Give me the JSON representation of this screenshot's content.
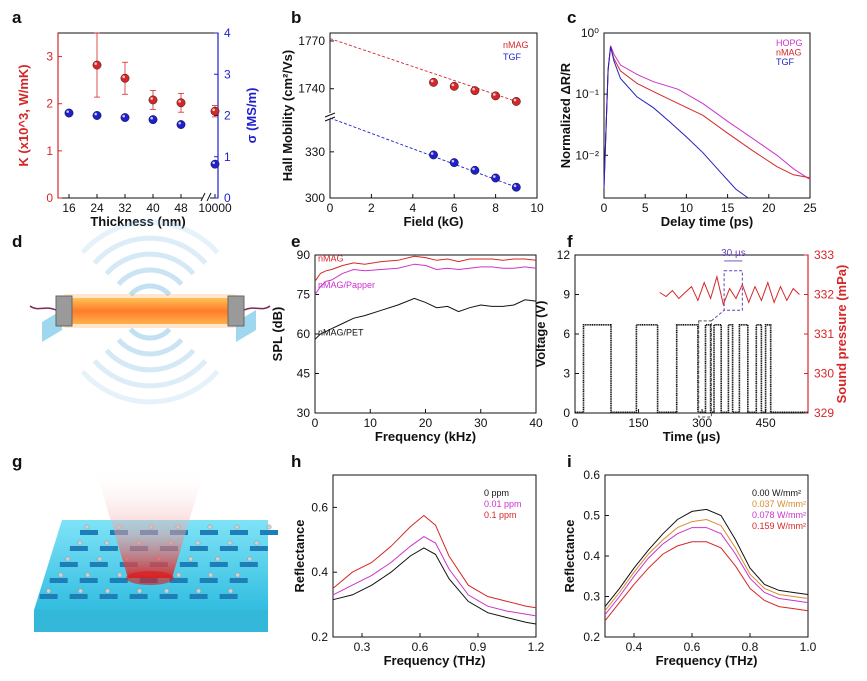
{
  "figure": {
    "panel_letters": [
      "a",
      "b",
      "c",
      "d",
      "e",
      "f",
      "g",
      "h",
      "i"
    ]
  },
  "chart_data": [
    {
      "id": "a",
      "type": "scatter",
      "xlabel": "Thickness (nm)",
      "ylabel_left": "K (x10^3, W/mK)",
      "ylabel_right": "σ (MS/m)",
      "categories": [
        "16",
        "24",
        "32",
        "40",
        "48",
        "10000"
      ],
      "ylim_left": [
        0,
        3.5
      ],
      "yticks_left": [
        "0",
        "1",
        "2",
        "3"
      ],
      "ylim_right": [
        0,
        4
      ],
      "yticks_right": [
        "0",
        "1",
        "2",
        "3",
        "4"
      ],
      "axis_break": true,
      "series": [
        {
          "axis": "left",
          "color": "#d62728",
          "values": [
            null,
            2.82,
            2.54,
            2.08,
            2.02,
            1.84
          ],
          "errors": [
            null,
            0.68,
            0.34,
            0.2,
            0.2,
            0.12
          ]
        },
        {
          "axis": "right",
          "color": "#1f1fcf",
          "values": [
            2.06,
            2.0,
            1.95,
            1.9,
            1.78,
            0.82
          ]
        }
      ]
    },
    {
      "id": "b",
      "type": "scatter",
      "xlabel": "Field (kG)",
      "ylabel": "Hall Mobility (cm²/Vs)",
      "xlim": [
        0,
        10
      ],
      "xticks": [
        "0",
        "2",
        "4",
        "6",
        "8",
        "10"
      ],
      "yticks": [
        "300",
        "330",
        "1740",
        "1770"
      ],
      "axis_break": true,
      "series": [
        {
          "name": "nMAG",
          "color": "#d62728",
          "x": [
            5,
            6,
            7,
            8,
            9
          ],
          "y": [
            1744,
            1741.5,
            1738.8,
            1735.5,
            1732
          ],
          "fit": [
            [
              0,
              1771.5
            ],
            [
              9,
              1732
            ]
          ]
        },
        {
          "name": "TGF",
          "color": "#1f1fcf",
          "x": [
            5,
            6,
            7,
            8,
            9
          ],
          "y": [
            328,
            323,
            318,
            313,
            307
          ],
          "fit": [
            [
              0,
              352
            ],
            [
              9,
              307
            ]
          ]
        }
      ]
    },
    {
      "id": "c",
      "type": "line",
      "xlabel": "Delay time (ps)",
      "ylabel": "Normalized ΔR/R",
      "yscale": "log",
      "xlim": [
        0,
        25
      ],
      "xticks": [
        "0",
        "5",
        "10",
        "15",
        "20",
        "25"
      ],
      "ylim": [
        0.002,
        1
      ],
      "yticks": [
        "10⁻²",
        "10⁻¹",
        "10⁰"
      ],
      "series": [
        {
          "name": "HOPG",
          "color": "#cc33cc",
          "x": [
            0,
            0.5,
            0.8,
            1.2,
            2,
            4,
            6,
            9,
            12,
            15,
            18,
            21,
            23,
            25
          ],
          "y": [
            0.003,
            0.25,
            0.62,
            0.45,
            0.3,
            0.21,
            0.16,
            0.12,
            0.07,
            0.036,
            0.019,
            0.01,
            0.006,
            0.004
          ]
        },
        {
          "name": "nMAG",
          "color": "#d62728",
          "x": [
            0,
            0.5,
            0.8,
            1.2,
            2,
            4,
            6,
            9,
            12,
            15,
            18,
            21,
            23,
            25
          ],
          "y": [
            0.003,
            0.25,
            0.6,
            0.38,
            0.24,
            0.15,
            0.11,
            0.07,
            0.045,
            0.023,
            0.012,
            0.0065,
            0.0048,
            0.0043
          ]
        },
        {
          "name": "TGF",
          "color": "#2222bb",
          "x": [
            0,
            0.5,
            0.8,
            1.2,
            2,
            4,
            6,
            8,
            10,
            12,
            14,
            16,
            17.5
          ],
          "y": [
            0.003,
            0.25,
            0.6,
            0.35,
            0.18,
            0.09,
            0.06,
            0.035,
            0.02,
            0.011,
            0.0055,
            0.0028,
            0.002
          ]
        }
      ]
    },
    {
      "id": "e",
      "type": "line",
      "xlabel": "Frequency (kHz)",
      "ylabel": "SPL (dB)",
      "xlim": [
        0,
        40
      ],
      "xticks": [
        "0",
        "10",
        "20",
        "30",
        "40"
      ],
      "ylim": [
        30,
        90
      ],
      "yticks": [
        "30",
        "45",
        "60",
        "75",
        "90"
      ],
      "series": [
        {
          "name": "nMAG",
          "color": "#d62728",
          "x": [
            0,
            1,
            2,
            3,
            5,
            7,
            9,
            12,
            15,
            18,
            20,
            22,
            24,
            26,
            28,
            30,
            32,
            34,
            36,
            38,
            40
          ],
          "y": [
            80,
            83,
            84,
            84.5,
            86,
            87,
            86.5,
            87.5,
            88,
            89.5,
            89,
            88,
            88.5,
            87.5,
            88.5,
            88.5,
            88.5,
            88,
            88.5,
            88.5,
            88
          ]
        },
        {
          "name": "nMAG/Papper",
          "color": "#cc33cc",
          "x": [
            0,
            1,
            2,
            3,
            5,
            7,
            9,
            12,
            15,
            18,
            20,
            22,
            24,
            26,
            28,
            30,
            32,
            34,
            36,
            38,
            40
          ],
          "y": [
            75,
            78,
            80,
            80.5,
            83,
            84.5,
            84,
            84.5,
            85,
            86.5,
            86,
            84.5,
            85,
            84.5,
            85,
            85.5,
            85.5,
            85,
            85,
            85.5,
            85
          ]
        },
        {
          "name": "nMAG/PET",
          "color": "#111111",
          "x": [
            0,
            1,
            2,
            3,
            5,
            7,
            9,
            12,
            15,
            18,
            20,
            22,
            24,
            26,
            28,
            30,
            32,
            34,
            36,
            38,
            40
          ],
          "y": [
            58,
            60,
            61,
            62,
            64,
            66,
            67,
            69,
            71,
            73.5,
            72,
            70,
            70.5,
            68.5,
            70,
            71,
            70.5,
            70.5,
            71,
            73,
            72.5
          ]
        }
      ]
    },
    {
      "id": "f",
      "type": "line",
      "xlabel": "Time (μs)",
      "ylabel_left": "Voltage (V)",
      "ylabel_right": "Sound pressure (mPa)",
      "xlim": [
        0,
        550
      ],
      "xticks": [
        "0",
        "150",
        "300",
        "450"
      ],
      "ylim_left": [
        0,
        12
      ],
      "yticks_left": [
        "0",
        "3",
        "6",
        "9",
        "12"
      ],
      "ylim_right": [
        329,
        333
      ],
      "yticks_right": [
        "329",
        "330",
        "331",
        "332",
        "333"
      ],
      "annotation": "30 μs",
      "pulses": {
        "color": "#111111",
        "high": 6.7,
        "low": 0.05,
        "intervals": [
          [
            20,
            85
          ],
          [
            145,
            195
          ],
          [
            240,
            290
          ],
          [
            308,
            320
          ],
          [
            328,
            345
          ],
          [
            362,
            372
          ],
          [
            388,
            408
          ],
          [
            428,
            440
          ],
          [
            450,
            462
          ]
        ]
      },
      "series": [
        {
          "name": "Sound pressure",
          "axis": "right",
          "color": "#d62728",
          "x": [
            200,
            215,
            230,
            245,
            260,
            275,
            290,
            305,
            320,
            335,
            350,
            365,
            380,
            395,
            410,
            425,
            440,
            455,
            470,
            485,
            500,
            515,
            530
          ],
          "y": [
            332.05,
            331.95,
            332.1,
            331.9,
            332.05,
            332.2,
            331.85,
            332.3,
            331.9,
            332.45,
            331.75,
            332.15,
            331.9,
            332.25,
            331.8,
            332.2,
            331.85,
            332.3,
            331.8,
            332.2,
            331.85,
            332.15,
            332.0
          ]
        }
      ]
    },
    {
      "id": "h",
      "type": "line",
      "xlabel": "Frequency (THz)",
      "ylabel": "Reflectance",
      "xlim": [
        0.15,
        1.2
      ],
      "xticks": [
        "0.3",
        "0.6",
        "0.9",
        "1.2"
      ],
      "ylim": [
        0.2,
        0.7
      ],
      "yticks": [
        "0.2",
        "0.4",
        "0.6"
      ],
      "series": [
        {
          "name": "0 ppm",
          "color": "#111111",
          "x": [
            0.15,
            0.25,
            0.35,
            0.45,
            0.55,
            0.62,
            0.68,
            0.75,
            0.85,
            0.95,
            1.05,
            1.15,
            1.2
          ],
          "y": [
            0.315,
            0.33,
            0.36,
            0.4,
            0.45,
            0.475,
            0.455,
            0.38,
            0.31,
            0.275,
            0.26,
            0.245,
            0.24
          ]
        },
        {
          "name": "0.01 ppm",
          "color": "#cc33cc",
          "x": [
            0.15,
            0.25,
            0.35,
            0.45,
            0.55,
            0.62,
            0.68,
            0.75,
            0.85,
            0.95,
            1.05,
            1.15,
            1.2
          ],
          "y": [
            0.33,
            0.36,
            0.39,
            0.43,
            0.48,
            0.51,
            0.49,
            0.41,
            0.33,
            0.295,
            0.28,
            0.27,
            0.265
          ]
        },
        {
          "name": "0.1 ppm",
          "color": "#d62728",
          "x": [
            0.15,
            0.25,
            0.35,
            0.45,
            0.55,
            0.62,
            0.68,
            0.75,
            0.85,
            0.95,
            1.05,
            1.15,
            1.2
          ],
          "y": [
            0.35,
            0.4,
            0.43,
            0.48,
            0.54,
            0.575,
            0.545,
            0.45,
            0.36,
            0.325,
            0.31,
            0.295,
            0.29
          ]
        }
      ]
    },
    {
      "id": "i",
      "type": "line",
      "xlabel": "Frequency (THz)",
      "ylabel": "Reflectance",
      "xlim": [
        0.3,
        1.0
      ],
      "xticks": [
        "0.4",
        "0.6",
        "0.8",
        "1.0"
      ],
      "ylim": [
        0.2,
        0.6
      ],
      "yticks": [
        "0.2",
        "0.3",
        "0.4",
        "0.5",
        "0.6"
      ],
      "series": [
        {
          "name": "0.00 W/mm²",
          "color": "#111111",
          "x": [
            0.3,
            0.35,
            0.4,
            0.45,
            0.5,
            0.55,
            0.6,
            0.65,
            0.7,
            0.75,
            0.8,
            0.85,
            0.9,
            0.95,
            1.0
          ],
          "y": [
            0.275,
            0.32,
            0.37,
            0.415,
            0.455,
            0.49,
            0.51,
            0.515,
            0.5,
            0.44,
            0.37,
            0.33,
            0.315,
            0.31,
            0.305
          ]
        },
        {
          "name": "0.037 W/mm²",
          "color": "#d98c2a",
          "x": [
            0.3,
            0.35,
            0.4,
            0.45,
            0.5,
            0.55,
            0.6,
            0.65,
            0.7,
            0.75,
            0.8,
            0.85,
            0.9,
            0.95,
            1.0
          ],
          "y": [
            0.265,
            0.31,
            0.36,
            0.405,
            0.44,
            0.47,
            0.485,
            0.49,
            0.475,
            0.42,
            0.355,
            0.32,
            0.305,
            0.3,
            0.295
          ]
        },
        {
          "name": "0.078 W/mm²",
          "color": "#cc33cc",
          "x": [
            0.3,
            0.35,
            0.4,
            0.45,
            0.5,
            0.55,
            0.6,
            0.65,
            0.7,
            0.75,
            0.8,
            0.85,
            0.9,
            0.95,
            1.0
          ],
          "y": [
            0.255,
            0.3,
            0.35,
            0.395,
            0.43,
            0.455,
            0.47,
            0.47,
            0.455,
            0.405,
            0.345,
            0.31,
            0.295,
            0.29,
            0.285
          ]
        },
        {
          "name": "0.159 W/mm²",
          "color": "#d62728",
          "x": [
            0.3,
            0.35,
            0.4,
            0.45,
            0.5,
            0.55,
            0.6,
            0.65,
            0.7,
            0.75,
            0.8,
            0.85,
            0.9,
            0.95,
            1.0
          ],
          "y": [
            0.24,
            0.285,
            0.33,
            0.37,
            0.405,
            0.425,
            0.435,
            0.435,
            0.42,
            0.375,
            0.32,
            0.29,
            0.275,
            0.27,
            0.265
          ]
        }
      ]
    }
  ]
}
